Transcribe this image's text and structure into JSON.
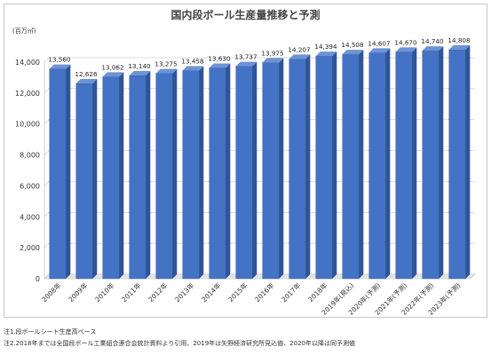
{
  "chart_data": {
    "type": "bar",
    "title": "国内段ボール生産量推移と予測",
    "unit_label": "(百万㎡)",
    "categories": [
      "2008年",
      "2009年",
      "2010年",
      "2011年",
      "2012年",
      "2013年",
      "2014年",
      "2015年",
      "2016年",
      "2017年",
      "2018年",
      "2019年(見込)",
      "2020年(予測)",
      "2021年(予測)",
      "2022年(予測)",
      "2023年(予測)"
    ],
    "values": [
      13560,
      12626,
      13062,
      13140,
      13275,
      13458,
      13630,
      13737,
      13975,
      14207,
      14394,
      14508,
      14607,
      14670,
      14740,
      14808
    ],
    "data_labels": [
      "13,560",
      "12,626",
      "13,062",
      "13,140",
      "13,275",
      "13,458",
      "13,630",
      "13,737",
      "13,975",
      "14,207",
      "14,394",
      "14,508",
      "14,607",
      "14,670",
      "14,740",
      "14,808"
    ],
    "y_ticks": [
      "0",
      "2,000",
      "4,000",
      "6,000",
      "8,000",
      "10,000",
      "12,000",
      "14,000"
    ],
    "ylim": [
      0,
      14000
    ],
    "grid": true,
    "legend": "none",
    "bar_color": "#4472c4"
  },
  "notes": [
    "注1.段ボールシート生産高ベース",
    "注2.2018年までは全国段ボール工業組合連合会統計資料より引用、2019年は矢野経済研究所見込値、2020年以降は同予測値"
  ]
}
